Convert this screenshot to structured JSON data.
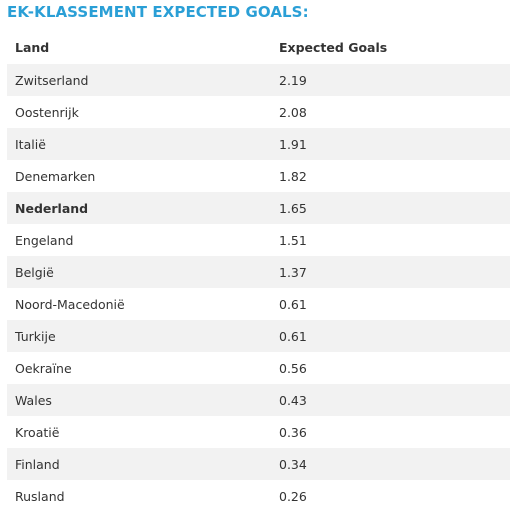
{
  "title": "EK-KLASSEMENT EXPECTED GOALS:",
  "colors": {
    "title": "#2a9fd6",
    "text": "#333333",
    "stripe": "#f2f2f2"
  },
  "table": {
    "headers": {
      "land": "Land",
      "xg": "Expected Goals"
    },
    "rows": [
      {
        "land": "Zwitserland",
        "xg": "2.19"
      },
      {
        "land": "Oostenrijk",
        "xg": "2.08"
      },
      {
        "land": "Italië",
        "xg": "1.91"
      },
      {
        "land": "Denemarken",
        "xg": "1.82"
      },
      {
        "land": "Nederland",
        "xg": "1.65",
        "highlight": true
      },
      {
        "land": "Engeland",
        "xg": "1.51"
      },
      {
        "land": "België",
        "xg": "1.37"
      },
      {
        "land": "Noord-Macedonië",
        "xg": "0.61"
      },
      {
        "land": "Turkije",
        "xg": "0.61"
      },
      {
        "land": "Oekraïne",
        "xg": "0.56"
      },
      {
        "land": "Wales",
        "xg": "0.43"
      },
      {
        "land": "Kroatië",
        "xg": "0.36"
      },
      {
        "land": "Finland",
        "xg": "0.34"
      },
      {
        "land": "Rusland",
        "xg": "0.26"
      }
    ]
  }
}
